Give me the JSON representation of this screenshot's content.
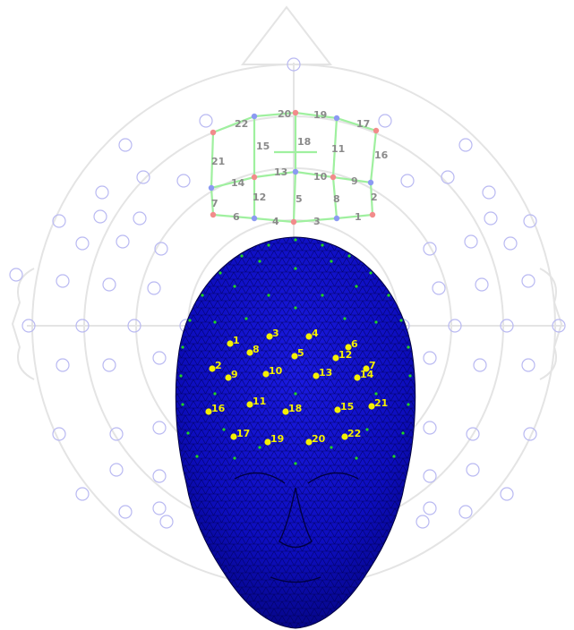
{
  "colors": {
    "background": "#ffffff",
    "polar_grid": "#e4e4e4",
    "sensor_circle": "#b9b9f2",
    "grid_line": "#9ff09f",
    "grid_node_red": "#f28b8b",
    "grid_node_blue": "#8b9af2",
    "grid_label": "#8a8a8a",
    "head_fill": "#1010c8",
    "head_mesh": "#000050",
    "electrode": "#f5f000",
    "scalp_dot": "#22d422"
  },
  "grid_electrodes": [
    {
      "id": "20",
      "label": "20"
    },
    {
      "id": "19",
      "label": "19"
    },
    {
      "id": "17",
      "label": "17"
    },
    {
      "id": "22",
      "label": "22"
    },
    {
      "id": "15",
      "label": "15"
    },
    {
      "id": "18",
      "label": "18"
    },
    {
      "id": "11",
      "label": "11"
    },
    {
      "id": "16",
      "label": "16"
    },
    {
      "id": "21",
      "label": "21"
    },
    {
      "id": "13",
      "label": "13"
    },
    {
      "id": "10",
      "label": "10"
    },
    {
      "id": "9",
      "label": "9"
    },
    {
      "id": "14",
      "label": "14"
    },
    {
      "id": "12",
      "label": "12"
    },
    {
      "id": "5",
      "label": "5"
    },
    {
      "id": "8",
      "label": "8"
    },
    {
      "id": "2",
      "label": "2"
    },
    {
      "id": "7",
      "label": "7"
    },
    {
      "id": "6",
      "label": "6"
    },
    {
      "id": "4",
      "label": "4"
    },
    {
      "id": "3",
      "label": "3"
    },
    {
      "id": "1",
      "label": "1"
    }
  ],
  "head_electrodes": [
    {
      "id": "3",
      "label": "3"
    },
    {
      "id": "4",
      "label": "4"
    },
    {
      "id": "1",
      "label": "1"
    },
    {
      "id": "8",
      "label": "8"
    },
    {
      "id": "5",
      "label": "5"
    },
    {
      "id": "12",
      "label": "12"
    },
    {
      "id": "6",
      "label": "6"
    },
    {
      "id": "2",
      "label": "2"
    },
    {
      "id": "7",
      "label": "7"
    },
    {
      "id": "9",
      "label": "9"
    },
    {
      "id": "10",
      "label": "10"
    },
    {
      "id": "13",
      "label": "13"
    },
    {
      "id": "14",
      "label": "14"
    },
    {
      "id": "11",
      "label": "11"
    },
    {
      "id": "18",
      "label": "18"
    },
    {
      "id": "15",
      "label": "15"
    },
    {
      "id": "21",
      "label": "21"
    },
    {
      "id": "16",
      "label": "16"
    },
    {
      "id": "17",
      "label": "17"
    },
    {
      "id": "19",
      "label": "19"
    },
    {
      "id": "20",
      "label": "20"
    },
    {
      "id": "22",
      "label": "22"
    }
  ]
}
